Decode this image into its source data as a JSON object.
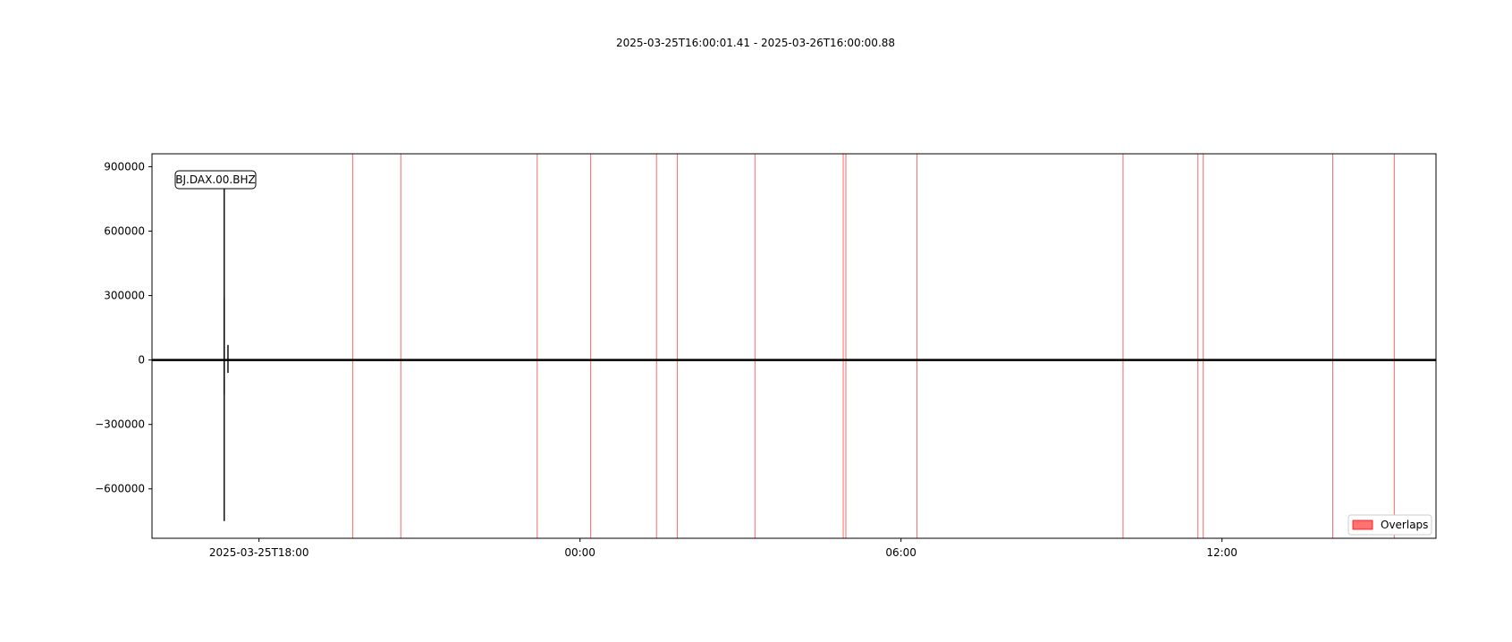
{
  "chart_data": {
    "type": "line",
    "title": "2025-03-25T16:00:01.41  -  2025-03-26T16:00:00.88",
    "trace_label": "BJ.DAX.00.BHZ",
    "x_unit": "hours since 2025-03-25T16:00",
    "xlim": [
      0,
      24
    ],
    "ylim": [
      -830000,
      960000
    ],
    "y_ticks": [
      900000,
      600000,
      300000,
      0,
      -300000,
      -600000
    ],
    "y_tick_labels": [
      "900000",
      "600000",
      "300000",
      "0",
      "−300000",
      "−600000"
    ],
    "x_ticks": [
      2,
      8,
      14,
      20
    ],
    "x_tick_labels": [
      "2025-03-25T18:00",
      "00:00",
      "06:00",
      "12:00"
    ],
    "legend": {
      "label": "Overlaps",
      "placement": "lower-right",
      "color": "#ff0000"
    },
    "series": [
      {
        "name": "BJ.DAX.00.BHZ",
        "color": "#000000",
        "spike_time": 1.35,
        "spike_segments": [
          [
            -750000,
            820000
          ],
          [
            -160000,
            290000
          ],
          [
            -60000,
            140000
          ]
        ],
        "aftershock": {
          "time": 1.42,
          "min": -60000,
          "max": 70000
        }
      }
    ],
    "overlaps": [
      3.75,
      4.65,
      7.2,
      8.2,
      9.43,
      9.82,
      11.27,
      12.92,
      12.97,
      14.3,
      18.15,
      19.55,
      19.65,
      22.07,
      23.22
    ]
  }
}
